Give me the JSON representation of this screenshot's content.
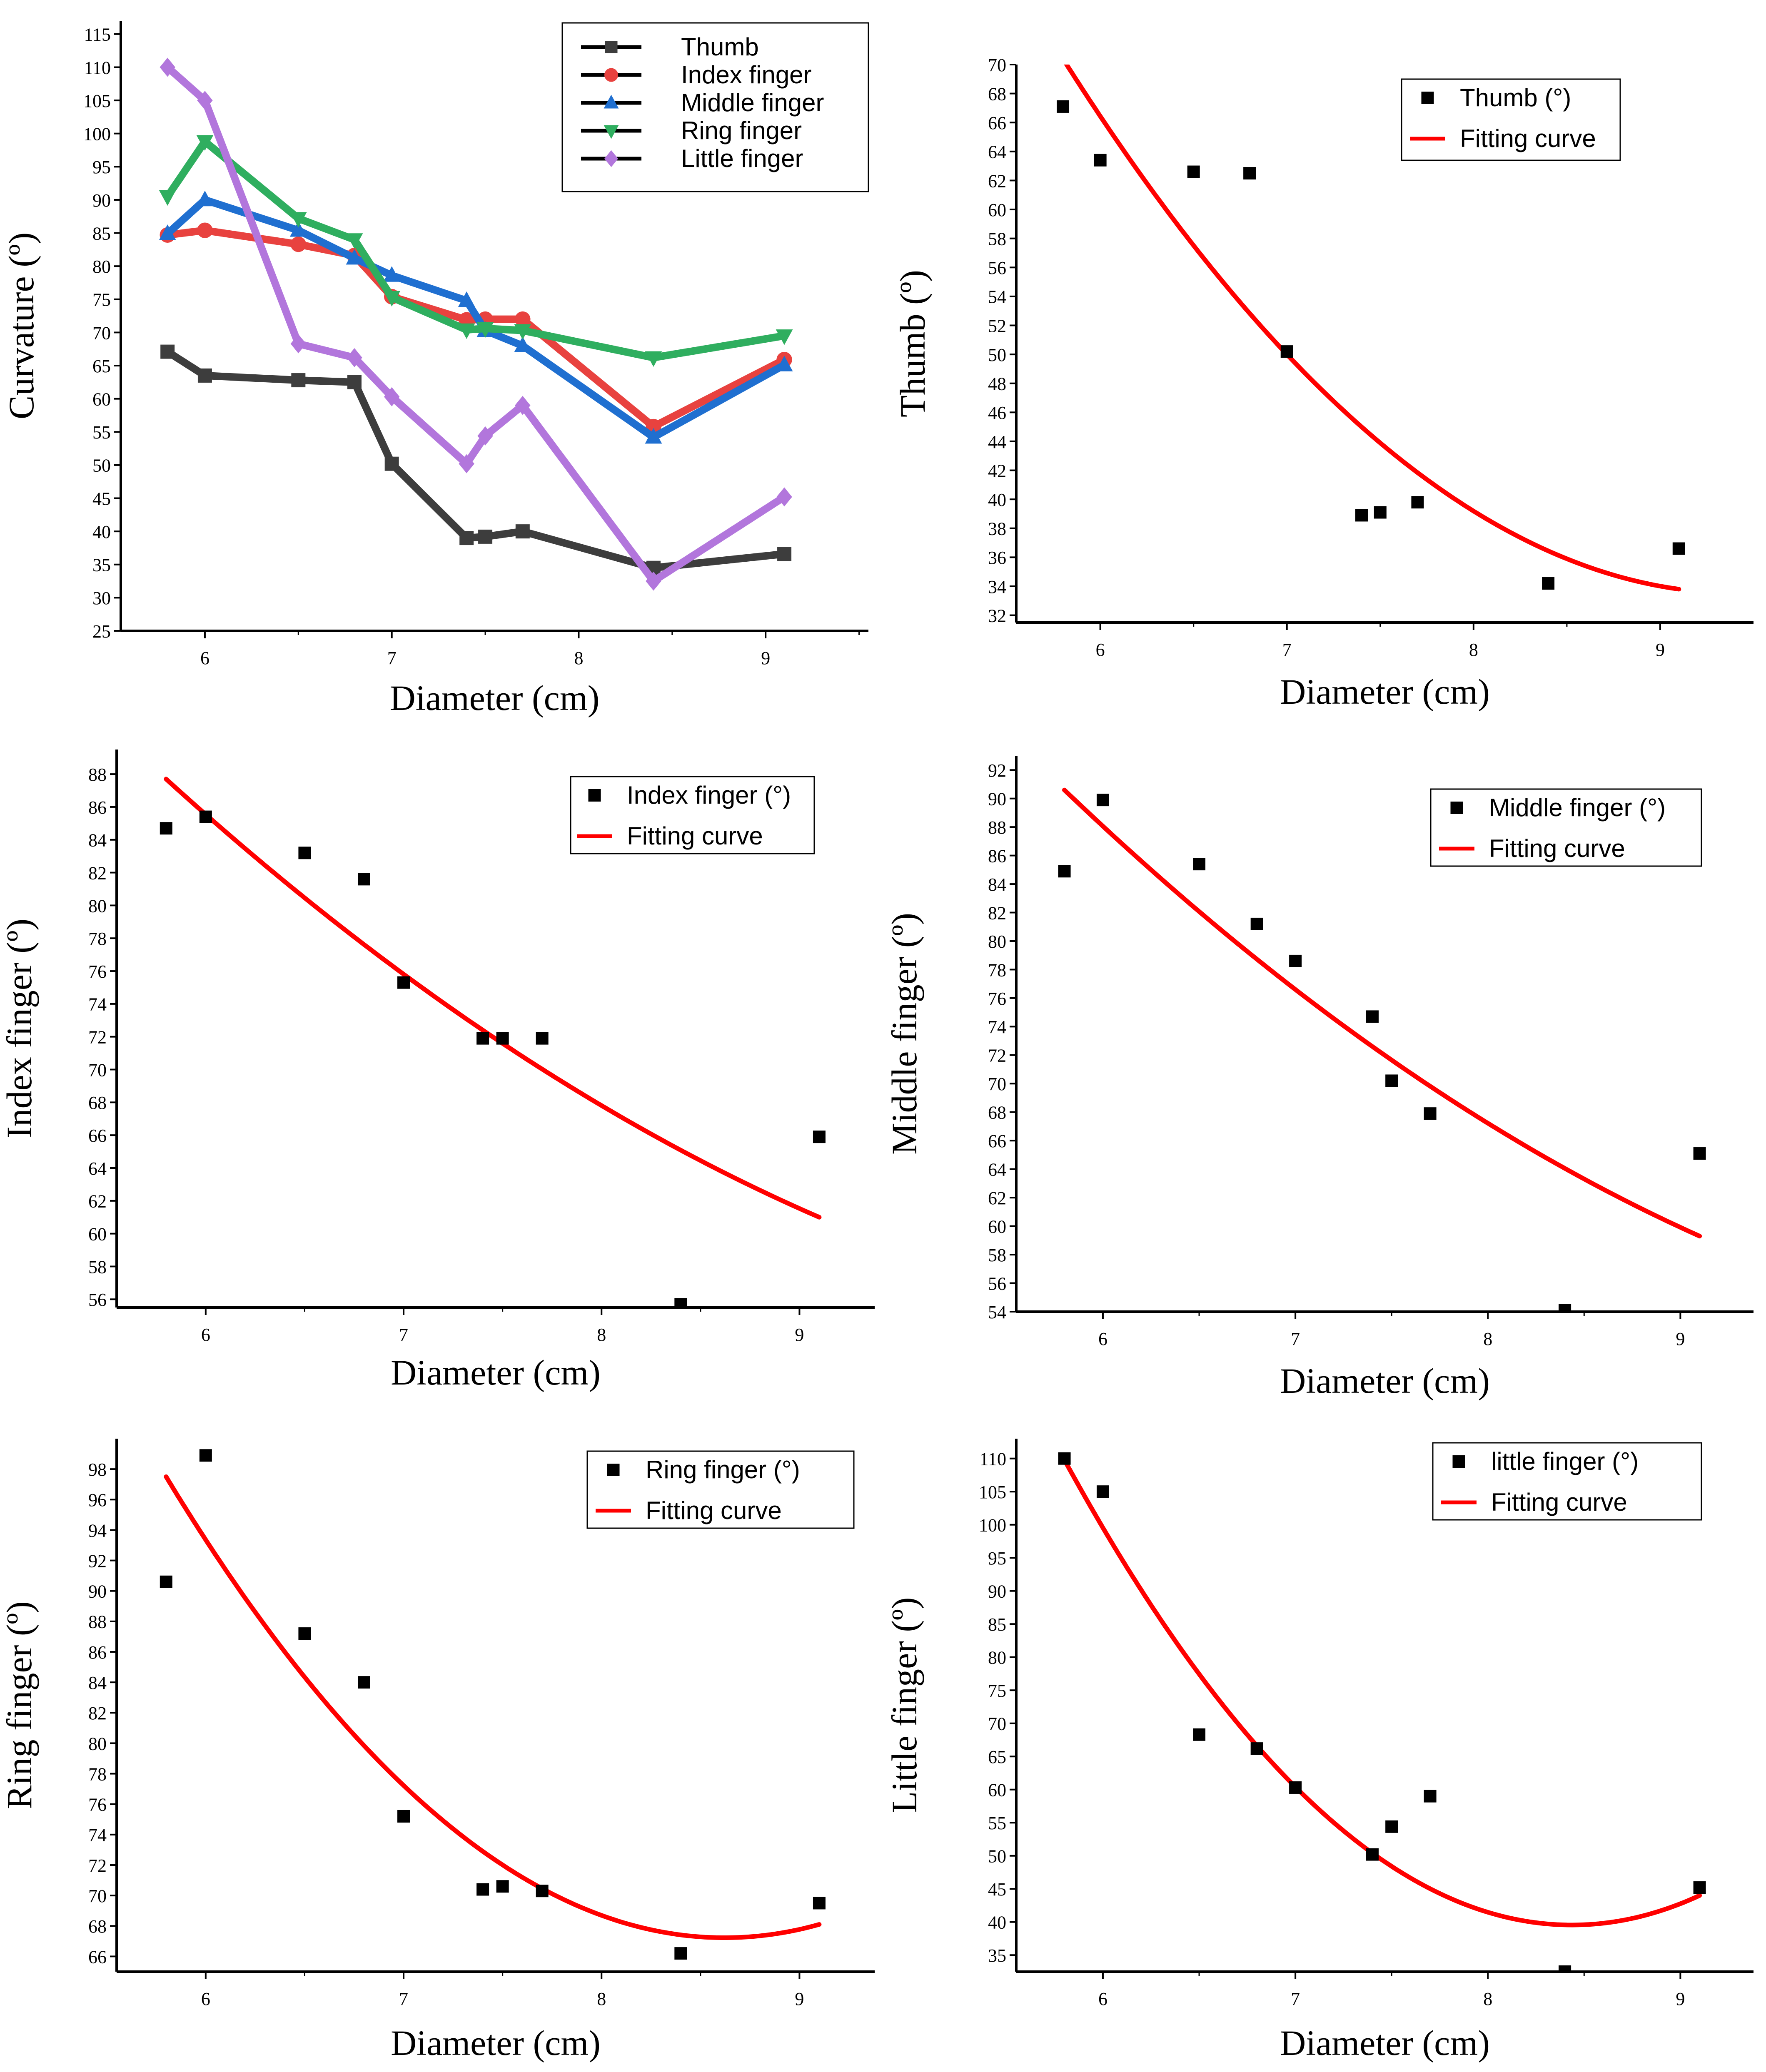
{
  "colors": {
    "axis": "#000000",
    "fit": "#ff0000",
    "scatter": "#000000",
    "thumb": "#3d3d3d",
    "index": "#e8423f",
    "middle": "#1f6fd0",
    "ring": "#2fae5f",
    "little": "#b276dc"
  },
  "chart_data": [
    {
      "id": "overview",
      "type": "line",
      "title": "",
      "xlabel": "Diameter (cm)",
      "ylabel": "Curvature (º)",
      "xlim": [
        5.55,
        9.55
      ],
      "ylim": [
        25,
        117
      ],
      "xticks": [
        6,
        7,
        8,
        9
      ],
      "yticks": [
        25,
        30,
        35,
        40,
        45,
        50,
        55,
        60,
        65,
        70,
        75,
        80,
        85,
        90,
        95,
        100,
        105,
        110,
        115
      ],
      "x": [
        5.8,
        6.0,
        6.5,
        6.8,
        7.0,
        7.4,
        7.5,
        7.7,
        8.4,
        9.1
      ],
      "legend_position": "top-right",
      "series": [
        {
          "name": "Thumb",
          "color_key": "thumb",
          "marker": "square",
          "values": [
            67.1,
            63.5,
            62.8,
            62.5,
            50.2,
            39.0,
            39.2,
            40.0,
            34.5,
            36.6
          ]
        },
        {
          "name": "Index finger",
          "color_key": "index",
          "marker": "circle",
          "values": [
            84.7,
            85.4,
            83.3,
            81.6,
            75.4,
            71.9,
            72.0,
            72.0,
            55.8,
            65.9
          ]
        },
        {
          "name": "Middle finger",
          "color_key": "middle",
          "marker": "triangle-up",
          "values": [
            84.9,
            90.0,
            85.4,
            81.2,
            78.6,
            74.8,
            70.3,
            68.0,
            54.2,
            65.1
          ]
        },
        {
          "name": "Ring finger",
          "color_key": "ring",
          "marker": "triangle-down",
          "values": [
            90.5,
            98.8,
            87.2,
            84.0,
            75.3,
            70.4,
            70.6,
            70.3,
            66.2,
            69.5
          ]
        },
        {
          "name": "Little finger",
          "color_key": "little",
          "marker": "diamond",
          "values": [
            110.0,
            105.0,
            68.3,
            66.2,
            60.3,
            50.2,
            54.4,
            59.0,
            32.5,
            45.2
          ]
        }
      ]
    },
    {
      "id": "thumb-fit",
      "type": "scatter",
      "xlabel": "Diameter (cm)",
      "ylabel": "Thumb (º)",
      "xlim": [
        5.55,
        9.5
      ],
      "ylim": [
        31.5,
        70
      ],
      "xticks": [
        6,
        7,
        8,
        9
      ],
      "yticks": [
        32,
        34,
        36,
        38,
        40,
        42,
        44,
        46,
        48,
        50,
        52,
        54,
        56,
        58,
        60,
        62,
        64,
        66,
        68,
        70
      ],
      "legend_position": "top-right",
      "legend": [
        "Thumb (°)",
        "Fitting curve"
      ],
      "points": {
        "x": [
          5.8,
          6.0,
          6.5,
          6.8,
          7.0,
          7.4,
          7.5,
          7.7,
          8.4,
          9.1
        ],
        "y": [
          67.1,
          63.4,
          62.6,
          62.5,
          50.2,
          38.9,
          39.1,
          39.8,
          34.2,
          36.6
        ]
      },
      "fit_curve": {
        "model": "quadratic",
        "through": [
          [
            5.8,
            70.4
          ],
          [
            7.4,
            45.0
          ],
          [
            9.1,
            33.8
          ]
        ],
        "x_range": [
          5.8,
          9.1
        ]
      }
    },
    {
      "id": "index-fit",
      "type": "scatter",
      "xlabel": "Diameter (cm)",
      "ylabel": "Index finger (º)",
      "xlim": [
        5.55,
        9.38
      ],
      "ylim": [
        55.5,
        89.5
      ],
      "xticks": [
        6,
        7,
        8,
        9
      ],
      "yticks": [
        56,
        58,
        60,
        62,
        64,
        66,
        68,
        70,
        72,
        74,
        76,
        78,
        80,
        82,
        84,
        86,
        88
      ],
      "legend_position": "top-right",
      "legend": [
        "Index finger (°)",
        "Fitting curve"
      ],
      "points": {
        "x": [
          5.8,
          6.0,
          6.5,
          6.8,
          7.0,
          7.4,
          7.5,
          7.7,
          8.4,
          9.1
        ],
        "y": [
          84.7,
          85.4,
          83.2,
          81.6,
          75.3,
          71.9,
          71.9,
          71.9,
          55.7,
          65.9
        ]
      },
      "fit_curve": {
        "model": "quadratic",
        "through": [
          [
            5.8,
            87.7
          ],
          [
            7.4,
            72.4
          ],
          [
            9.1,
            61.0
          ]
        ],
        "x_range": [
          5.8,
          9.1
        ]
      }
    },
    {
      "id": "middle-fit",
      "type": "scatter",
      "xlabel": "Diameter (cm)",
      "ylabel": "Middle finger (º)",
      "xlim": [
        5.55,
        9.38
      ],
      "ylim": [
        54,
        93
      ],
      "xticks": [
        6,
        7,
        8,
        9
      ],
      "yticks": [
        54,
        56,
        58,
        60,
        62,
        64,
        66,
        68,
        70,
        72,
        74,
        76,
        78,
        80,
        82,
        84,
        86,
        88,
        90,
        92
      ],
      "legend_position": "top-right",
      "legend": [
        "Middle finger (°)",
        "Fitting curve"
      ],
      "points": {
        "x": [
          5.8,
          6.0,
          6.5,
          6.8,
          7.0,
          7.4,
          7.5,
          7.7,
          8.4,
          9.1
        ],
        "y": [
          84.9,
          89.9,
          85.4,
          81.2,
          78.6,
          74.7,
          70.2,
          67.9,
          54.1,
          65.1
        ]
      },
      "fit_curve": {
        "model": "quadratic",
        "through": [
          [
            5.8,
            90.6
          ],
          [
            7.4,
            72.6
          ],
          [
            9.1,
            59.3
          ]
        ],
        "x_range": [
          5.8,
          9.1
        ]
      }
    },
    {
      "id": "ring-fit",
      "type": "scatter",
      "xlabel": "Diameter (cm)",
      "ylabel": "Ring finger (º)",
      "xlim": [
        5.55,
        9.38
      ],
      "ylim": [
        65,
        100
      ],
      "xticks": [
        6,
        7,
        8,
        9
      ],
      "yticks": [
        66,
        68,
        70,
        72,
        74,
        76,
        78,
        80,
        82,
        84,
        86,
        88,
        90,
        92,
        94,
        96,
        98
      ],
      "legend_position": "top-right",
      "legend": [
        "Ring finger (°)",
        "Fitting curve"
      ],
      "points": {
        "x": [
          5.8,
          6.0,
          6.5,
          6.8,
          7.0,
          7.4,
          7.5,
          7.7,
          8.4,
          9.1
        ],
        "y": [
          90.6,
          98.9,
          87.2,
          84.0,
          75.2,
          70.4,
          70.6,
          70.3,
          66.2,
          69.5
        ]
      },
      "fit_curve": {
        "model": "quadratic",
        "through": [
          [
            5.8,
            97.5
          ],
          [
            7.4,
            72.9
          ],
          [
            9.1,
            68.1
          ]
        ],
        "x_range": [
          5.8,
          9.1
        ]
      }
    },
    {
      "id": "little-fit",
      "type": "scatter",
      "xlabel": "Diameter (cm)",
      "ylabel": "Little finger (º)",
      "xlim": [
        5.55,
        9.38
      ],
      "ylim": [
        32.5,
        113
      ],
      "xticks": [
        6,
        7,
        8,
        9
      ],
      "yticks": [
        35,
        40,
        45,
        50,
        55,
        60,
        65,
        70,
        75,
        80,
        85,
        90,
        95,
        100,
        105,
        110
      ],
      "legend_position": "top-right",
      "legend": [
        "little finger (°)",
        "Fitting curve"
      ],
      "points": {
        "x": [
          5.8,
          6.0,
          6.5,
          6.8,
          7.0,
          7.4,
          7.5,
          7.7,
          8.4,
          9.1
        ],
        "y": [
          110.0,
          105.0,
          68.3,
          66.2,
          60.3,
          50.2,
          54.4,
          59.0,
          32.5,
          45.2
        ]
      },
      "fit_curve": {
        "model": "quadratic",
        "through": [
          [
            5.8,
            109.8
          ],
          [
            7.4,
            50.4
          ],
          [
            9.1,
            44.0
          ]
        ],
        "x_range": [
          5.8,
          9.1
        ]
      }
    }
  ]
}
